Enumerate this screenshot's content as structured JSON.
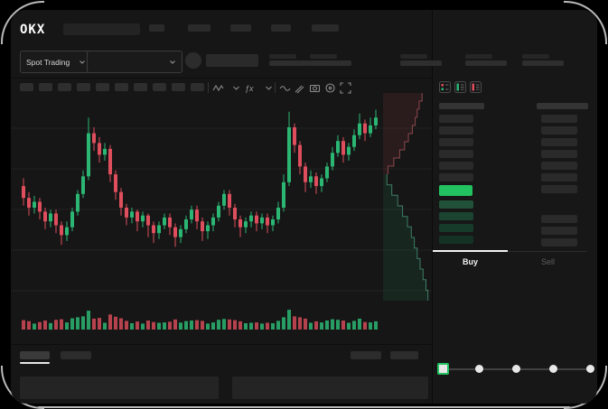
{
  "app": {
    "logo_text": "OKX"
  },
  "header": {
    "market_dropdown_label": "Spot Trading"
  },
  "order_book": {
    "view_icons": [
      "book-combined-view",
      "book-bids-view",
      "book-asks-view"
    ]
  },
  "order_panel": {
    "buy_tab_label": "Buy",
    "sell_tab_label": "Sell",
    "amount_slider": {
      "stops": 5,
      "selected_index": 0
    }
  },
  "colors": {
    "up_green": "#2bb673",
    "down_red": "#de4e5c",
    "accent_green": "#22c260",
    "screen_bg": "#161616",
    "panel_bg": "#171717",
    "skeleton_gray": "#2b2b2b"
  },
  "chart_data": {
    "type": "candlestick",
    "title": "",
    "axes_labeled": false,
    "price_units": "normalized 0-100; the chart displays no numeric axis labels",
    "legend": "none",
    "grid": "horizontal faint lines",
    "candles_oclh_v": [
      [
        58,
        52,
        48,
        62,
        40
      ],
      [
        52,
        47,
        43,
        55,
        35
      ],
      [
        47,
        50,
        44,
        53,
        22
      ],
      [
        50,
        45,
        41,
        52,
        30
      ],
      [
        45,
        40,
        36,
        47,
        38
      ],
      [
        40,
        44,
        37,
        46,
        25
      ],
      [
        44,
        38,
        34,
        46,
        42
      ],
      [
        38,
        33,
        28,
        40,
        45
      ],
      [
        33,
        37,
        30,
        40,
        28
      ],
      [
        37,
        45,
        35,
        47,
        50
      ],
      [
        45,
        54,
        43,
        56,
        55
      ],
      [
        54,
        63,
        52,
        66,
        60
      ],
      [
        63,
        85,
        61,
        93,
        90
      ],
      [
        85,
        80,
        76,
        88,
        48
      ],
      [
        80,
        74,
        70,
        83,
        52
      ],
      [
        74,
        77,
        71,
        80,
        26
      ],
      [
        77,
        64,
        60,
        79,
        70
      ],
      [
        64,
        55,
        51,
        66,
        58
      ],
      [
        55,
        47,
        43,
        57,
        50
      ],
      [
        47,
        42,
        38,
        49,
        36
      ],
      [
        42,
        45,
        39,
        47,
        24
      ],
      [
        45,
        40,
        35,
        46,
        33
      ],
      [
        40,
        43,
        37,
        45,
        22
      ],
      [
        43,
        38,
        32,
        44,
        38
      ],
      [
        38,
        34,
        29,
        40,
        30
      ],
      [
        34,
        38,
        31,
        40,
        26
      ],
      [
        38,
        42,
        36,
        44,
        28
      ],
      [
        42,
        37,
        33,
        44,
        32
      ],
      [
        37,
        32,
        27,
        39,
        44
      ],
      [
        32,
        36,
        29,
        38,
        27
      ],
      [
        36,
        41,
        34,
        43,
        35
      ],
      [
        41,
        46,
        39,
        48,
        38
      ],
      [
        46,
        40,
        36,
        48,
        40
      ],
      [
        40,
        35,
        30,
        42,
        36
      ],
      [
        35,
        38,
        31,
        40,
        22
      ],
      [
        38,
        42,
        35,
        44,
        28
      ],
      [
        42,
        48,
        40,
        50,
        42
      ],
      [
        48,
        54,
        46,
        56,
        46
      ],
      [
        54,
        47,
        43,
        56,
        44
      ],
      [
        47,
        41,
        37,
        49,
        40
      ],
      [
        41,
        37,
        32,
        43,
        34
      ],
      [
        37,
        40,
        34,
        42,
        24
      ],
      [
        40,
        43,
        37,
        45,
        26
      ],
      [
        43,
        39,
        35,
        45,
        28
      ],
      [
        39,
        42,
        36,
        44,
        22
      ],
      [
        42,
        38,
        34,
        44,
        26
      ],
      [
        38,
        41,
        35,
        43,
        24
      ],
      [
        41,
        47,
        39,
        50,
        36
      ],
      [
        47,
        60,
        45,
        64,
        55
      ],
      [
        60,
        88,
        58,
        96,
        95
      ],
      [
        88,
        79,
        75,
        90,
        60
      ],
      [
        79,
        68,
        64,
        81,
        55
      ],
      [
        68,
        60,
        55,
        70,
        48
      ],
      [
        60,
        63,
        57,
        66,
        26
      ],
      [
        63,
        58,
        54,
        65,
        34
      ],
      [
        58,
        62,
        55,
        64,
        28
      ],
      [
        62,
        68,
        60,
        70,
        38
      ],
      [
        68,
        75,
        66,
        78,
        45
      ],
      [
        75,
        81,
        73,
        84,
        42
      ],
      [
        81,
        74,
        70,
        83,
        38
      ],
      [
        74,
        78,
        71,
        80,
        26
      ],
      [
        78,
        84,
        76,
        87,
        36
      ],
      [
        84,
        90,
        82,
        95,
        48
      ],
      [
        90,
        85,
        81,
        92,
        30
      ],
      [
        85,
        89,
        83,
        93,
        28
      ],
      [
        89,
        93,
        87,
        97,
        34
      ]
    ],
    "depth_overlay": {
      "asks_width_profile_top_to_mid": [
        0.8,
        0.74,
        0.7,
        0.66,
        0.6,
        0.52,
        0.44,
        0.34,
        0.22,
        0.1
      ],
      "bids_width_profile_mid_to_bottom": [
        0.08,
        0.18,
        0.3,
        0.4,
        0.5,
        0.58,
        0.64,
        0.7,
        0.76,
        0.82,
        0.88,
        0.92
      ]
    }
  }
}
